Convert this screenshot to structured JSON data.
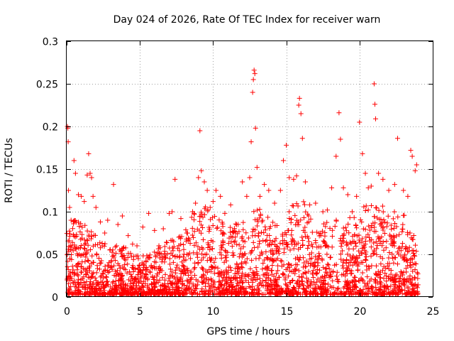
{
  "chart_data": {
    "type": "scatter",
    "title": "Day 024 of 2026, Rate Of TEC Index for receiver warn",
    "xlabel": "GPS time / hours",
    "ylabel": "ROTI / TECUs",
    "xlim": [
      0,
      25
    ],
    "ylim": [
      0,
      0.3
    ],
    "xticks": [
      0,
      5,
      10,
      15,
      20,
      25
    ],
    "xtick_labels": [
      "0",
      "5",
      "10",
      "15",
      "20",
      "25"
    ],
    "yticks": [
      0,
      0.05,
      0.1,
      0.15,
      0.2,
      0.25,
      0.3
    ],
    "ytick_labels": [
      "0",
      "0.05",
      "0.1",
      "0.15",
      "0.2",
      "0.25",
      "0.3"
    ],
    "grid": true,
    "marker": "+",
    "color": "#ff0000",
    "series": [
      {
        "name": "ROTI",
        "points": [
          [
            0.05,
            0.2
          ],
          [
            0.08,
            0.198
          ],
          [
            0.1,
            0.182
          ],
          [
            0.12,
            0.125
          ],
          [
            0.2,
            0.105
          ],
          [
            0.3,
            0.09
          ],
          [
            0.5,
            0.16
          ],
          [
            0.6,
            0.145
          ],
          [
            0.8,
            0.12
          ],
          [
            1.0,
            0.118
          ],
          [
            1.2,
            0.112
          ],
          [
            1.4,
            0.143
          ],
          [
            1.5,
            0.168
          ],
          [
            1.6,
            0.145
          ],
          [
            1.7,
            0.14
          ],
          [
            1.8,
            0.118
          ],
          [
            2.0,
            0.105
          ],
          [
            2.3,
            0.088
          ],
          [
            2.6,
            0.075
          ],
          [
            2.8,
            0.09
          ],
          [
            3.2,
            0.132
          ],
          [
            3.5,
            0.085
          ],
          [
            3.8,
            0.095
          ],
          [
            4.2,
            0.072
          ],
          [
            4.5,
            0.062
          ],
          [
            4.8,
            0.06
          ],
          [
            5.2,
            0.082
          ],
          [
            5.6,
            0.098
          ],
          [
            6.0,
            0.078
          ],
          [
            6.3,
            0.06
          ],
          [
            6.6,
            0.08
          ],
          [
            7.0,
            0.098
          ],
          [
            7.2,
            0.1
          ],
          [
            7.4,
            0.138
          ],
          [
            7.8,
            0.092
          ],
          [
            8.2,
            0.075
          ],
          [
            8.6,
            0.1
          ],
          [
            8.8,
            0.11
          ],
          [
            9.0,
            0.14
          ],
          [
            9.1,
            0.195
          ],
          [
            9.2,
            0.148
          ],
          [
            9.4,
            0.135
          ],
          [
            9.6,
            0.125
          ],
          [
            9.8,
            0.105
          ],
          [
            10.0,
            0.112
          ],
          [
            10.2,
            0.125
          ],
          [
            10.5,
            0.118
          ],
          [
            10.8,
            0.098
          ],
          [
            11.2,
            0.108
          ],
          [
            11.6,
            0.085
          ],
          [
            12.0,
            0.135
          ],
          [
            12.3,
            0.118
          ],
          [
            12.5,
            0.14
          ],
          [
            12.6,
            0.182
          ],
          [
            12.7,
            0.24
          ],
          [
            12.75,
            0.255
          ],
          [
            12.8,
            0.266
          ],
          [
            12.85,
            0.262
          ],
          [
            12.9,
            0.198
          ],
          [
            13.0,
            0.152
          ],
          [
            13.2,
            0.118
          ],
          [
            13.5,
            0.132
          ],
          [
            13.8,
            0.125
          ],
          [
            14.2,
            0.11
          ],
          [
            14.6,
            0.125
          ],
          [
            14.8,
            0.16
          ],
          [
            15.0,
            0.178
          ],
          [
            15.2,
            0.14
          ],
          [
            15.5,
            0.138
          ],
          [
            15.7,
            0.142
          ],
          [
            15.85,
            0.225
          ],
          [
            15.9,
            0.233
          ],
          [
            16.0,
            0.215
          ],
          [
            16.1,
            0.186
          ],
          [
            16.3,
            0.135
          ],
          [
            16.6,
            0.108
          ],
          [
            17.0,
            0.11
          ],
          [
            17.5,
            0.1
          ],
          [
            17.8,
            0.102
          ],
          [
            18.1,
            0.128
          ],
          [
            18.4,
            0.165
          ],
          [
            18.6,
            0.216
          ],
          [
            18.7,
            0.185
          ],
          [
            18.9,
            0.128
          ],
          [
            19.2,
            0.12
          ],
          [
            19.5,
            0.1
          ],
          [
            19.8,
            0.118
          ],
          [
            20.0,
            0.205
          ],
          [
            20.2,
            0.168
          ],
          [
            20.4,
            0.145
          ],
          [
            20.6,
            0.128
          ],
          [
            20.8,
            0.13
          ],
          [
            21.0,
            0.25
          ],
          [
            21.05,
            0.226
          ],
          [
            21.1,
            0.209
          ],
          [
            21.3,
            0.145
          ],
          [
            21.6,
            0.138
          ],
          [
            22.0,
            0.125
          ],
          [
            22.4,
            0.132
          ],
          [
            22.6,
            0.186
          ],
          [
            23.0,
            0.125
          ],
          [
            23.3,
            0.118
          ],
          [
            23.5,
            0.172
          ],
          [
            23.6,
            0.165
          ],
          [
            23.8,
            0.148
          ],
          [
            23.9,
            0.155
          ]
        ]
      }
    ],
    "dense_band": {
      "description": "dense cluster of measurements along the whole day",
      "x_range": [
        0,
        24
      ],
      "y_floor": 0.003,
      "envelope_hours": [
        0,
        1,
        2,
        3,
        4,
        5,
        6,
        7,
        8,
        9,
        10,
        11,
        12,
        13,
        14,
        15,
        16,
        17,
        18,
        19,
        20,
        21,
        22,
        23,
        24
      ],
      "envelope_values": [
        0.09,
        0.085,
        0.07,
        0.06,
        0.055,
        0.045,
        0.05,
        0.065,
        0.075,
        0.11,
        0.1,
        0.08,
        0.085,
        0.11,
        0.085,
        0.095,
        0.12,
        0.075,
        0.09,
        0.085,
        0.1,
        0.11,
        0.1,
        0.095,
        0.06
      ]
    }
  }
}
